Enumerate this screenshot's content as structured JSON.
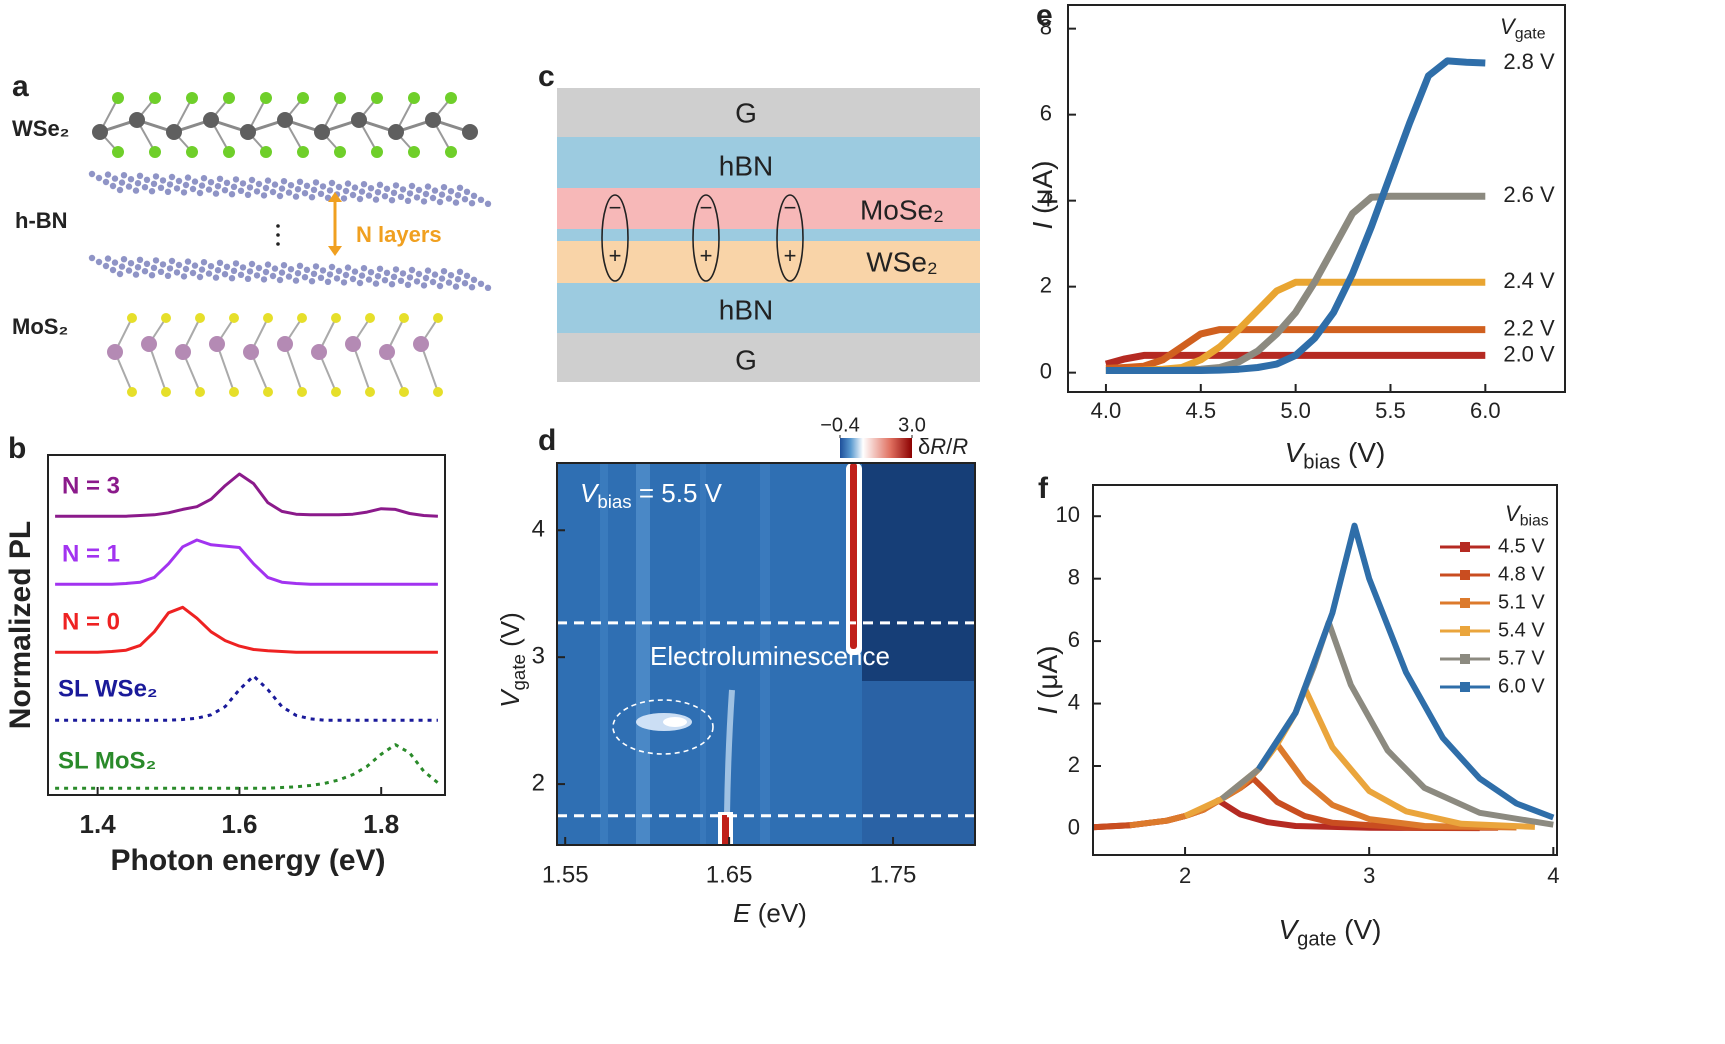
{
  "diagram_a": {
    "label": "a",
    "layers": [
      "WSe₂",
      "h-BN",
      "MoS₂"
    ],
    "annotation": "N layers"
  },
  "diagram_c": {
    "label": "c",
    "layers": [
      "G",
      "hBN",
      "MoSe₂",
      "WSe₂",
      "hBN",
      "G"
    ],
    "excitons": [
      {
        "top": "−",
        "bottom": "+"
      },
      {
        "top": "−",
        "bottom": "+"
      },
      {
        "top": "−",
        "bottom": "+"
      }
    ]
  },
  "chart_data": [
    {
      "type": "line",
      "label": "b",
      "xlabel": [
        {
          "text": "Photon energy (eV)"
        }
      ],
      "ylabel": [
        {
          "text": "Normalized PL"
        }
      ],
      "x": [
        1.34,
        1.36,
        1.38,
        1.4,
        1.42,
        1.44,
        1.46,
        1.48,
        1.5,
        1.52,
        1.54,
        1.56,
        1.58,
        1.6,
        1.62,
        1.64,
        1.66,
        1.68,
        1.7,
        1.72,
        1.74,
        1.76,
        1.78,
        1.8,
        1.82,
        1.84,
        1.86,
        1.88
      ],
      "xlim": [
        1.33,
        1.89
      ],
      "ylim": [
        0,
        5
      ],
      "xticks": [
        1.4,
        1.6,
        1.8
      ],
      "legend": "inline",
      "series": [
        {
          "name": "N = 3",
          "color": "#8b1a8b",
          "linestyle": "solid",
          "values": [
            4.1,
            4.1,
            4.1,
            4.1,
            4.1,
            4.1,
            4.11,
            4.12,
            4.15,
            4.2,
            4.24,
            4.35,
            4.55,
            4.72,
            4.58,
            4.3,
            4.17,
            4.13,
            4.12,
            4.12,
            4.12,
            4.13,
            4.16,
            4.21,
            4.2,
            4.14,
            4.11,
            4.1
          ]
        },
        {
          "name": "N = 1",
          "color": "#a233f0",
          "linestyle": "solid",
          "values": [
            3.1,
            3.1,
            3.1,
            3.1,
            3.1,
            3.11,
            3.13,
            3.2,
            3.4,
            3.65,
            3.75,
            3.68,
            3.66,
            3.64,
            3.4,
            3.2,
            3.13,
            3.11,
            3.1,
            3.1,
            3.1,
            3.1,
            3.1,
            3.1,
            3.1,
            3.1,
            3.1,
            3.1
          ]
        },
        {
          "name": "N = 0",
          "color": "#ee2222",
          "linestyle": "solid",
          "values": [
            2.1,
            2.1,
            2.1,
            2.1,
            2.11,
            2.13,
            2.2,
            2.4,
            2.68,
            2.76,
            2.6,
            2.4,
            2.27,
            2.19,
            2.14,
            2.12,
            2.11,
            2.1,
            2.1,
            2.1,
            2.1,
            2.1,
            2.1,
            2.1,
            2.1,
            2.1,
            2.1,
            2.1
          ]
        },
        {
          "name": "SL WSe₂",
          "color": "#1a1a9a",
          "linestyle": "dotted",
          "values": [
            1.1,
            1.1,
            1.1,
            1.1,
            1.1,
            1.1,
            1.1,
            1.1,
            1.1,
            1.11,
            1.13,
            1.18,
            1.3,
            1.55,
            1.75,
            1.55,
            1.3,
            1.17,
            1.12,
            1.1,
            1.1,
            1.1,
            1.1,
            1.1,
            1.1,
            1.1,
            1.1,
            1.1
          ]
        },
        {
          "name": "SL MoS₂",
          "color": "#2a8a2a",
          "linestyle": "dotted",
          "values": [
            0.1,
            0.1,
            0.1,
            0.1,
            0.1,
            0.1,
            0.1,
            0.1,
            0.1,
            0.1,
            0.1,
            0.1,
            0.1,
            0.1,
            0.1,
            0.1,
            0.11,
            0.12,
            0.14,
            0.17,
            0.22,
            0.3,
            0.42,
            0.6,
            0.74,
            0.62,
            0.35,
            0.18
          ]
        }
      ]
    },
    {
      "type": "image",
      "label": "d",
      "xlabel": [
        {
          "text": "E",
          "italic": true
        },
        {
          "text": " (eV)"
        }
      ],
      "ylabel": [
        {
          "text": "V",
          "italic": true
        },
        {
          "text": "gate",
          "sub": true
        },
        {
          "text": " (V)"
        }
      ],
      "xlim": [
        1.545,
        1.8
      ],
      "ylim": [
        1.52,
        4.53
      ],
      "xticks": [
        1.55,
        1.65,
        1.75
      ],
      "yticks": [
        2,
        3,
        4
      ],
      "hlines": [
        3.27,
        1.75
      ],
      "annotations": [
        [
          {
            "text": "V",
            "italic": true
          },
          {
            "text": "bias",
            "sub": true
          },
          {
            "text": " = 5.5 V"
          }
        ],
        [
          {
            "text": "Electroluminescence"
          }
        ]
      ],
      "colorbar": {
        "lim": [
          -0.4,
          3
        ],
        "ticks": [
          {
            "value": -0.4,
            "label": "−0.4"
          },
          {
            "value": 3,
            "label": "3.0"
          }
        ],
        "label": [
          {
            "text": "δ"
          },
          {
            "text": "R",
            "italic": true
          },
          {
            "text": "/"
          },
          {
            "text": "R",
            "italic": true
          }
        ]
      }
    },
    {
      "type": "line",
      "label": "e",
      "xlabel": [
        {
          "text": "V",
          "italic": true
        },
        {
          "text": "bias",
          "sub": true
        },
        {
          "text": " (V)"
        }
      ],
      "ylabel": [
        {
          "text": "I",
          "italic": true
        },
        {
          "text": " (μA)"
        }
      ],
      "legend_title": [
        {
          "text": "V",
          "italic": true
        },
        {
          "text": "gate",
          "sub": true
        }
      ],
      "x": [
        4,
        4.1,
        4.2,
        4.3,
        4.4,
        4.5,
        4.6,
        4.7,
        4.8,
        4.9,
        5,
        5.1,
        5.2,
        5.3,
        5.4,
        5.5,
        5.6,
        5.7,
        5.8,
        5.9,
        6
      ],
      "xlim": [
        3.8,
        6.42
      ],
      "ylim": [
        -0.45,
        8.55
      ],
      "xticks": [
        {
          "value": 4,
          "label": "4.0"
        },
        4.5,
        {
          "value": 5,
          "label": "5.0"
        },
        5.5,
        {
          "value": 6,
          "label": "6.0"
        }
      ],
      "yticks": [
        0,
        2,
        4,
        6,
        8
      ],
      "legend": "line-end",
      "series": [
        {
          "name": "2.0 V",
          "color": "#b52a22",
          "values": [
            0.2,
            0.32,
            0.4,
            0.4,
            0.4,
            0.4,
            0.4,
            0.4,
            0.4,
            0.4,
            0.4,
            0.4,
            0.4,
            0.4,
            0.4,
            0.4,
            0.4,
            0.4,
            0.4,
            0.4,
            0.4
          ]
        },
        {
          "name": "2.2 V",
          "color": "#d0601f",
          "values": [
            0.1,
            0.12,
            0.15,
            0.3,
            0.6,
            0.9,
            1.0,
            1.0,
            1.0,
            1.0,
            1.0,
            1.0,
            1.0,
            1.0,
            1.0,
            1.0,
            1.0,
            1.0,
            1.0,
            1.0,
            1.0
          ]
        },
        {
          "name": "2.4 V",
          "color": "#e9a531",
          "values": [
            0.05,
            0.05,
            0.06,
            0.08,
            0.12,
            0.3,
            0.6,
            1.0,
            1.45,
            1.9,
            2.1,
            2.1,
            2.1,
            2.1,
            2.1,
            2.1,
            2.1,
            2.1,
            2.1,
            2.1,
            2.1
          ]
        },
        {
          "name": "2.6 V",
          "color": "#8c8a80",
          "values": [
            0.05,
            0.05,
            0.05,
            0.05,
            0.06,
            0.08,
            0.12,
            0.25,
            0.5,
            0.9,
            1.4,
            2.1,
            2.9,
            3.7,
            4.08,
            4.1,
            4.1,
            4.1,
            4.1,
            4.1,
            4.1
          ]
        },
        {
          "name": "2.8 V",
          "color": "#2f6ea9",
          "values": [
            0.05,
            0.05,
            0.05,
            0.05,
            0.05,
            0.05,
            0.06,
            0.08,
            0.12,
            0.2,
            0.4,
            0.8,
            1.4,
            2.3,
            3.4,
            4.6,
            5.8,
            6.9,
            7.25,
            7.22,
            7.2
          ]
        }
      ]
    },
    {
      "type": "line",
      "label": "f",
      "xlabel": [
        {
          "text": "V",
          "italic": true
        },
        {
          "text": "gate",
          "sub": true
        },
        {
          "text": " (V)"
        }
      ],
      "ylabel": [
        {
          "text": "I",
          "italic": true
        },
        {
          "text": " (μA)"
        }
      ],
      "legend_title": [
        {
          "text": "V",
          "italic": true
        },
        {
          "text": "bias",
          "sub": true
        }
      ],
      "xlim": [
        1.5,
        4.02
      ],
      "ylim": [
        -0.85,
        11
      ],
      "xticks": [
        2,
        3,
        4
      ],
      "yticks": [
        0,
        2,
        4,
        6,
        8,
        10
      ],
      "legend": "upper right",
      "series": [
        {
          "name": "4.5 V",
          "color": "#b52a22",
          "x": [
            1.5,
            1.7,
            1.9,
            2.0,
            2.1,
            2.18,
            2.3,
            2.45,
            2.6,
            3.0,
            3.6
          ],
          "values": [
            0.04,
            0.1,
            0.25,
            0.4,
            0.6,
            0.9,
            0.45,
            0.2,
            0.08,
            0.02,
            0.01
          ]
        },
        {
          "name": "4.8 V",
          "color": "#c94d20",
          "x": [
            1.5,
            1.7,
            1.9,
            2.0,
            2.1,
            2.2,
            2.3,
            2.37,
            2.5,
            2.65,
            2.8,
            3.2,
            3.7
          ],
          "values": [
            0.04,
            0.1,
            0.25,
            0.4,
            0.6,
            0.95,
            1.3,
            1.6,
            0.85,
            0.4,
            0.18,
            0.03,
            0.02
          ]
        },
        {
          "name": "5.1 V",
          "color": "#dc7a2c",
          "x": [
            1.7,
            1.9,
            2.0,
            2.1,
            2.2,
            2.3,
            2.4,
            2.5,
            2.65,
            2.8,
            3.0,
            3.3,
            3.8
          ],
          "values": [
            0.1,
            0.25,
            0.4,
            0.6,
            0.95,
            1.3,
            1.9,
            2.7,
            1.5,
            0.75,
            0.3,
            0.08,
            0.03
          ]
        },
        {
          "name": "5.4 V",
          "color": "#eaa53c",
          "x": [
            2.0,
            2.2,
            2.4,
            2.5,
            2.6,
            2.65,
            2.8,
            3.0,
            3.2,
            3.5,
            3.9
          ],
          "values": [
            0.4,
            0.95,
            1.9,
            2.7,
            3.7,
            4.5,
            2.6,
            1.2,
            0.55,
            0.15,
            0.05
          ]
        },
        {
          "name": "5.7 V",
          "color": "#8c8a80",
          "x": [
            2.2,
            2.4,
            2.6,
            2.7,
            2.78,
            2.9,
            3.1,
            3.3,
            3.6,
            4.0
          ],
          "values": [
            0.95,
            1.9,
            3.7,
            5.2,
            6.6,
            4.6,
            2.5,
            1.3,
            0.5,
            0.12
          ]
        },
        {
          "name": "6.0 V",
          "color": "#2f6ea9",
          "x": [
            2.4,
            2.6,
            2.8,
            2.92,
            3.0,
            3.2,
            3.4,
            3.6,
            3.8,
            4.0
          ],
          "values": [
            1.9,
            3.7,
            6.9,
            9.7,
            8.0,
            5.0,
            2.9,
            1.6,
            0.8,
            0.35
          ]
        }
      ]
    }
  ]
}
